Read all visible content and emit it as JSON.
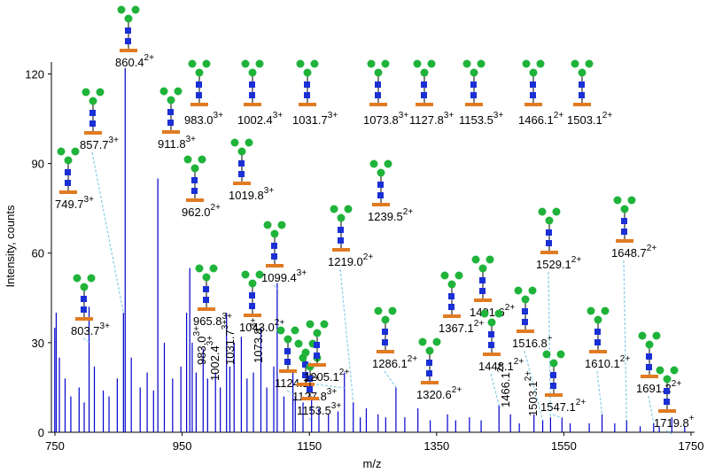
{
  "chart_data": {
    "type": "stem",
    "x_label": "m/z",
    "y_label": "Intensity, counts",
    "xlim": [
      750,
      1750
    ],
    "ylim": [
      0,
      124
    ],
    "xticks": [
      750,
      950,
      1150,
      1350,
      1550,
      1750
    ],
    "yticks": [
      0,
      30,
      60,
      90,
      120
    ],
    "color": "#0000cc",
    "peaks": {
      "x": [
        749.7,
        803.7,
        857.7,
        860.4,
        911.8,
        962.0,
        965.8,
        983.0,
        1002.4,
        1019.8,
        1031.7,
        1043.0,
        1073.8,
        1099.4,
        1124.1,
        1127.8,
        1153.5,
        1205.1,
        1219.0,
        1239.5,
        1286.1,
        1320.6,
        1367.1,
        1401.6,
        1448.1,
        1466.1,
        1503.1,
        1516.8,
        1529.1,
        1547.1,
        1610.1,
        1648.7,
        1691.2,
        1719.8
      ],
      "x_labels": [
        "749.7",
        "803.7",
        "857.7",
        "860.4",
        "911.8",
        "962.0",
        "965.8",
        "983.0",
        "1002.4",
        "1019.8",
        "1031.7",
        "1043.0",
        "1073.8",
        "1099.4",
        "1124.1",
        "1127.8",
        "1153.5",
        "1205.1",
        "1219.0",
        "1239.5",
        "1286.1",
        "1320.6",
        "1367.1",
        "1401.6",
        "1448.1",
        "1466.1",
        "1503.1",
        "1516.8",
        "1529.1",
        "1547.1",
        "1610.1",
        "1648.7",
        "1691.2",
        "1719.8"
      ],
      "charges": [
        "3+",
        "3+",
        "3+",
        "2+",
        "3+",
        "2+",
        "3+",
        "3+",
        "3+",
        "3+",
        "3+",
        "2+",
        "3+",
        "3+",
        "2+",
        "3+",
        "3+",
        "2+",
        "2+",
        "2+",
        "2+",
        "2+",
        "2+",
        "2+",
        "2+",
        "2+",
        "2+",
        "+",
        "2+",
        "2+",
        "2+",
        "2+",
        "2+",
        "+"
      ],
      "values": [
        35,
        42,
        40,
        122,
        85,
        55,
        30,
        28,
        20,
        40,
        30,
        32,
        35,
        50,
        20,
        12,
        12,
        20,
        10,
        8,
        15,
        8,
        6,
        5,
        9,
        6,
        6,
        4,
        5,
        5,
        6,
        4,
        3,
        5
      ]
    },
    "noise": {
      "x": [
        752,
        757,
        766,
        775,
        788,
        796,
        812,
        826,
        835,
        848,
        870,
        884,
        895,
        905,
        922,
        935,
        948,
        957,
        972,
        990,
        1010,
        1025,
        1052,
        1062,
        1083,
        1094,
        1110,
        1140,
        1165,
        1180,
        1195,
        1230,
        1258,
        1270,
        1300,
        1340,
        1380,
        1420,
        1480,
        1560,
        1590,
        1630,
        1670,
        1700,
        1740
      ],
      "values": [
        40,
        25,
        18,
        12,
        15,
        10,
        22,
        14,
        12,
        18,
        25,
        15,
        20,
        14,
        30,
        18,
        22,
        40,
        20,
        18,
        15,
        22,
        18,
        20,
        15,
        22,
        12,
        10,
        8,
        6,
        7,
        5,
        6,
        5,
        5,
        4,
        4,
        4,
        3,
        3,
        3,
        3,
        2,
        2,
        2
      ]
    },
    "inset_labels": [
      {
        "label": "983.0",
        "charge": "3+"
      },
      {
        "label": "1002.4",
        "charge": "3+"
      },
      {
        "label": "1031.7",
        "charge": "3+"
      },
      {
        "label": "1073.8",
        "charge": "3+"
      },
      {
        "label": "1127.8",
        "charge": "3+"
      },
      {
        "label": "1153.5",
        "charge": "3+"
      },
      {
        "label": "1466.1",
        "charge": "2+"
      },
      {
        "label": "1503.1",
        "charge": "2+"
      }
    ]
  }
}
